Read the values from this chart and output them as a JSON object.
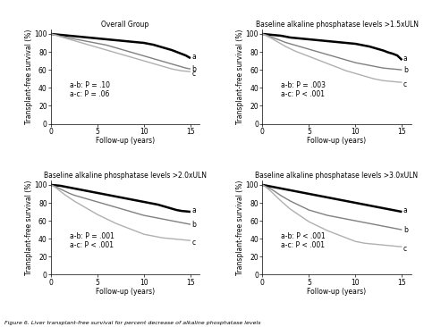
{
  "titles": [
    "Overall Group",
    "Baseline alkaline phosphatase levels >1.5xULN",
    "Baseline alkaline phosphatase levels >2.0xULN",
    "Baseline alkaline phosphatase levels >3.0xULN"
  ],
  "ylabel": "Transplant-free survival (%)",
  "xlabel": "Follow-up (years)",
  "caption": "Figure 6. Liver transplant-free survival for percent decrease of alkaline phosphatase levels",
  "xlim": [
    0,
    16
  ],
  "ylim": [
    0,
    105
  ],
  "yticks": [
    0,
    20,
    40,
    60,
    80,
    100
  ],
  "xticks": [
    0,
    5,
    10,
    15
  ],
  "annotations": [
    "a-b: P = .10\na-c: P = .06",
    "a-b: P = .003\na-c: P < .001",
    "a-b: P = .001\na-c: P < .001",
    "a-b: P < .001\na-c: P < .001"
  ],
  "ann_pos": [
    [
      2.0,
      38
    ],
    [
      2.0,
      38
    ],
    [
      2.0,
      38
    ],
    [
      2.0,
      38
    ]
  ],
  "curves": {
    "a": {
      "color": "#000000",
      "linewidth": 1.8,
      "panels": [
        {
          "x": [
            0,
            0.5,
            1,
            1.5,
            2,
            2.5,
            3,
            3.5,
            4,
            4.5,
            5,
            5.5,
            6,
            6.5,
            7,
            7.5,
            8,
            8.5,
            9,
            9.5,
            10,
            10.5,
            11,
            11.5,
            12,
            12.5,
            13,
            13.5,
            14,
            14.5,
            15
          ],
          "y": [
            100,
            99.5,
            99,
            98.5,
            98,
            97.5,
            97,
            96.5,
            96,
            95.5,
            95,
            94.5,
            94,
            93.5,
            93,
            92.5,
            92,
            91.5,
            91,
            90.5,
            90,
            89,
            88,
            86.5,
            85,
            83.5,
            82,
            80,
            78,
            76,
            73
          ]
        },
        {
          "x": [
            0,
            0.5,
            1,
            1.5,
            2,
            2.5,
            3,
            3.5,
            4,
            4.5,
            5,
            5.5,
            6,
            6.5,
            7,
            7.5,
            8,
            8.5,
            9,
            9.5,
            10,
            10.5,
            11,
            11.5,
            12,
            12.5,
            13,
            13.5,
            14,
            14.5,
            15
          ],
          "y": [
            100,
            99.5,
            99,
            98.5,
            98,
            97,
            96,
            95.5,
            95,
            94.5,
            94,
            93.5,
            93,
            92.5,
            92,
            91.5,
            91,
            90.5,
            90,
            89.5,
            89,
            88,
            87,
            86,
            84.5,
            83,
            81.5,
            79.5,
            78,
            76,
            71
          ]
        },
        {
          "x": [
            0,
            0.5,
            1,
            1.5,
            2,
            2.5,
            3,
            3.5,
            4,
            4.5,
            5,
            5.5,
            6,
            6.5,
            7,
            7.5,
            8,
            8.5,
            9,
            9.5,
            10,
            10.5,
            11,
            11.5,
            12,
            12.5,
            13,
            13.5,
            14,
            14.5,
            15
          ],
          "y": [
            100,
            99.5,
            99,
            98,
            97,
            96,
            95,
            94,
            93,
            92,
            91,
            90,
            89,
            88,
            87,
            86,
            85,
            84,
            83,
            82,
            81,
            80,
            79,
            78,
            76.5,
            75,
            73.5,
            72,
            71,
            70.5,
            70
          ]
        },
        {
          "x": [
            0,
            0.5,
            1,
            1.5,
            2,
            2.5,
            3,
            3.5,
            4,
            4.5,
            5,
            5.5,
            6,
            6.5,
            7,
            7.5,
            8,
            8.5,
            9,
            9.5,
            10,
            10.5,
            11,
            11.5,
            12,
            12.5,
            13,
            13.5,
            14,
            14.5,
            15
          ],
          "y": [
            100,
            99,
            98,
            97,
            96,
            95,
            94,
            93,
            92,
            91,
            90,
            89,
            88,
            87,
            86,
            85,
            84,
            83,
            82,
            81,
            80,
            79,
            78,
            77,
            76,
            75,
            74,
            73,
            72,
            71,
            70
          ]
        }
      ]
    },
    "b": {
      "color": "#808080",
      "linewidth": 1.0,
      "panels": [
        {
          "x": [
            0,
            0.5,
            1,
            1.5,
            2,
            2.5,
            3,
            3.5,
            4,
            4.5,
            5,
            5.5,
            6,
            6.5,
            7,
            7.5,
            8,
            8.5,
            9,
            9.5,
            10,
            10.5,
            11,
            11.5,
            12,
            12.5,
            13,
            13.5,
            14,
            14.5,
            15
          ],
          "y": [
            100,
            99,
            97.5,
            96.5,
            95.5,
            94.5,
            93.5,
            92.5,
            91.5,
            90.5,
            89.5,
            88.5,
            87.5,
            86,
            84.5,
            83,
            81.5,
            80,
            78.5,
            77,
            75.5,
            74,
            72.5,
            71,
            69.5,
            68,
            66.5,
            65,
            63.5,
            62,
            61
          ]
        },
        {
          "x": [
            0,
            0.5,
            1,
            1.5,
            2,
            2.5,
            3,
            3.5,
            4,
            4.5,
            5,
            5.5,
            6,
            6.5,
            7,
            7.5,
            8,
            8.5,
            9,
            9.5,
            10,
            10.5,
            11,
            11.5,
            12,
            12.5,
            13,
            13.5,
            14,
            14.5,
            15
          ],
          "y": [
            100,
            98.5,
            96.5,
            94.5,
            92.5,
            90.5,
            89,
            87.5,
            86,
            84.5,
            83,
            81.5,
            80,
            78.5,
            77,
            75.5,
            74,
            72.5,
            71,
            69.5,
            68,
            67,
            66,
            65,
            64,
            63,
            62,
            61.5,
            61,
            60.5,
            60
          ]
        },
        {
          "x": [
            0,
            0.5,
            1,
            1.5,
            2,
            2.5,
            3,
            3.5,
            4,
            4.5,
            5,
            5.5,
            6,
            6.5,
            7,
            7.5,
            8,
            8.5,
            9,
            9.5,
            10,
            10.5,
            11,
            11.5,
            12,
            12.5,
            13,
            13.5,
            14,
            14.5,
            15
          ],
          "y": [
            100,
            98,
            95.5,
            93,
            90.5,
            88.5,
            87,
            85.5,
            84,
            82.5,
            81,
            79.5,
            78,
            76.5,
            75,
            73.5,
            72,
            70.5,
            69,
            67.5,
            66,
            65,
            64,
            63,
            62,
            61,
            60,
            59,
            58,
            57,
            56
          ]
        },
        {
          "x": [
            0,
            0.5,
            1,
            1.5,
            2,
            2.5,
            3,
            3.5,
            4,
            4.5,
            5,
            5.5,
            6,
            6.5,
            7,
            7.5,
            8,
            8.5,
            9,
            9.5,
            10,
            10.5,
            11,
            11.5,
            12,
            12.5,
            13,
            13.5,
            14,
            14.5,
            15
          ],
          "y": [
            100,
            97.5,
            95,
            91.5,
            88,
            85,
            82,
            79.5,
            77,
            74.5,
            72,
            70.5,
            69,
            67.5,
            66,
            65,
            64,
            63,
            62,
            61,
            60,
            59,
            58,
            57,
            56,
            55,
            54,
            53,
            52,
            51,
            50
          ]
        }
      ]
    },
    "c": {
      "color": "#b0b0b0",
      "linewidth": 1.0,
      "panels": [
        {
          "x": [
            0,
            0.5,
            1,
            1.5,
            2,
            2.5,
            3,
            3.5,
            4,
            4.5,
            5,
            5.5,
            6,
            6.5,
            7,
            7.5,
            8,
            8.5,
            9,
            9.5,
            10,
            10.5,
            11,
            11.5,
            12,
            12.5,
            13,
            13.5,
            14,
            14.5,
            15
          ],
          "y": [
            100,
            98.5,
            97,
            95.5,
            94,
            92.5,
            91,
            89.5,
            88,
            86.5,
            85,
            83.5,
            82,
            80.5,
            79,
            77.5,
            76,
            74.5,
            73,
            71.5,
            70,
            68.5,
            67,
            65.5,
            64,
            62.5,
            61,
            60,
            59,
            58.5,
            58
          ]
        },
        {
          "x": [
            0,
            0.5,
            1,
            1.5,
            2,
            2.5,
            3,
            3.5,
            4,
            4.5,
            5,
            5.5,
            6,
            6.5,
            7,
            7.5,
            8,
            8.5,
            9,
            9.5,
            10,
            10.5,
            11,
            11.5,
            12,
            12.5,
            13,
            13.5,
            14,
            14.5,
            15
          ],
          "y": [
            100,
            97.5,
            95,
            92,
            89,
            86,
            83.5,
            81,
            79,
            77,
            75,
            73,
            71,
            69,
            67,
            65,
            63,
            61,
            59,
            57.5,
            56,
            54.5,
            53,
            51.5,
            50,
            49,
            48,
            47.5,
            47,
            46.5,
            46
          ]
        },
        {
          "x": [
            0,
            0.5,
            1,
            1.5,
            2,
            2.5,
            3,
            3.5,
            4,
            4.5,
            5,
            5.5,
            6,
            6.5,
            7,
            7.5,
            8,
            8.5,
            9,
            9.5,
            10,
            10.5,
            11,
            11.5,
            12,
            12.5,
            13,
            13.5,
            14,
            14.5,
            15
          ],
          "y": [
            100,
            97,
            93,
            89,
            85.5,
            82,
            79,
            76,
            73,
            70,
            67,
            64.5,
            62,
            59.5,
            57,
            55,
            53,
            51,
            49,
            47,
            45,
            44,
            43,
            42,
            41,
            40.5,
            40,
            39.5,
            39,
            38.5,
            38
          ]
        },
        {
          "x": [
            0,
            0.5,
            1,
            1.5,
            2,
            2.5,
            3,
            3.5,
            4,
            4.5,
            5,
            5.5,
            6,
            6.5,
            7,
            7.5,
            8,
            8.5,
            9,
            9.5,
            10,
            10.5,
            11,
            11.5,
            12,
            12.5,
            13,
            13.5,
            14,
            14.5,
            15
          ],
          "y": [
            100,
            96.5,
            92,
            87,
            82,
            77.5,
            73,
            69.5,
            66,
            62.5,
            59,
            56.5,
            54,
            51.5,
            49,
            47,
            45,
            43,
            41,
            39,
            37,
            36,
            35,
            34.5,
            34,
            33.5,
            33,
            32.5,
            32,
            31.5,
            31
          ]
        }
      ]
    }
  },
  "label_end_offsets": {
    "panel0": {
      "a": 2,
      "b": 0,
      "c": -2
    },
    "panel1": {
      "a": 2,
      "b": 0,
      "c": -2
    },
    "panel2": {
      "a": 2,
      "b": 0,
      "c": -2
    },
    "panel3": {
      "a": 2,
      "b": 0,
      "c": -2
    }
  }
}
